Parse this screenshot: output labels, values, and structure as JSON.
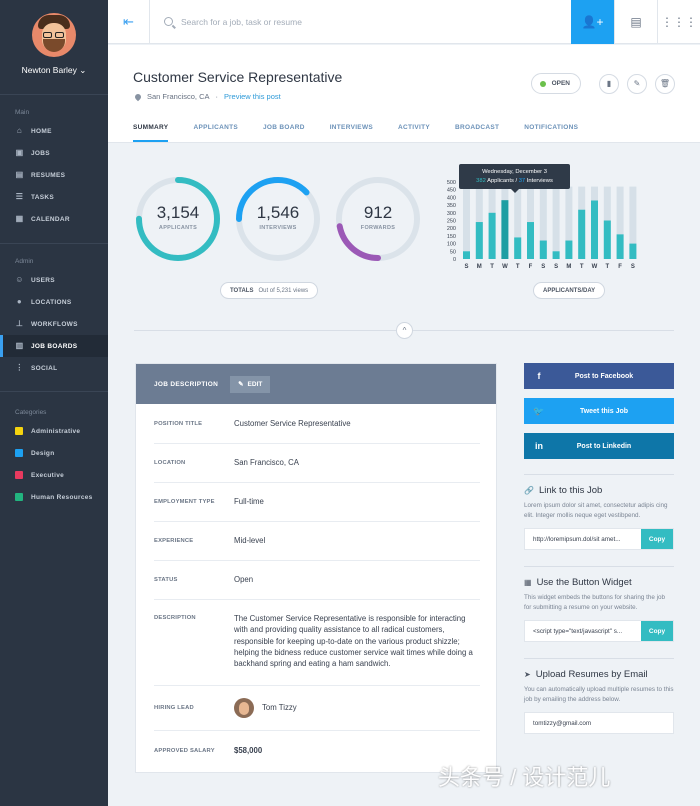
{
  "user": {
    "name": "Newton Barley ⌄"
  },
  "sidebar": {
    "main_label": "Main",
    "main_items": [
      {
        "label": "HOME",
        "icon": "home-icon"
      },
      {
        "label": "JOBS",
        "icon": "briefcase-icon"
      },
      {
        "label": "RESUMES",
        "icon": "document-icon"
      },
      {
        "label": "TASKS",
        "icon": "checklist-icon"
      },
      {
        "label": "CALENDAR",
        "icon": "calendar-icon"
      }
    ],
    "admin_label": "Admin",
    "admin_items": [
      {
        "label": "USERS",
        "icon": "users-icon"
      },
      {
        "label": "LOCATIONS",
        "icon": "pin-icon"
      },
      {
        "label": "WORKFLOWS",
        "icon": "hierarchy-icon"
      },
      {
        "label": "JOB BOARDS",
        "icon": "board-icon",
        "active": true
      },
      {
        "label": "SOCIAL",
        "icon": "share-icon"
      }
    ],
    "categories_label": "Categories",
    "categories": [
      {
        "label": "Administrative",
        "color": "#f5d40f"
      },
      {
        "label": "Design",
        "color": "#1da1f2"
      },
      {
        "label": "Executive",
        "color": "#e83a5f"
      },
      {
        "label": "Human Resources",
        "color": "#22b47f"
      }
    ]
  },
  "search": {
    "placeholder": "Search for a job, task or resume"
  },
  "job": {
    "title": "Customer Service Representative",
    "location": "San Francisco, CA",
    "preview_link": "Preview this post",
    "status": "OPEN"
  },
  "tabs": [
    "SUMMARY",
    "APPLICANTS",
    "JOB BOARD",
    "INTERVIEWS",
    "ACTIVITY",
    "BROADCAST",
    "NOTIFICATIONS"
  ],
  "stats": {
    "applicants": {
      "value": "3,154",
      "label": "APPLICANTS",
      "fill": 0.75,
      "color": "#33bcc2"
    },
    "interviews": {
      "value": "1,546",
      "label": "INTERVIEWS",
      "fill": 0.38,
      "color": "#1da1f2"
    },
    "forwards": {
      "value": "912",
      "label": "FORWARDS",
      "fill": 0.22,
      "color": "#9b59b6"
    },
    "totals_label": "TOTALS",
    "totals_sub": "Out of 5,231 views"
  },
  "chart_data": {
    "type": "bar",
    "categories": [
      "S",
      "M",
      "T",
      "W",
      "T",
      "F",
      "S",
      "S",
      "M",
      "T",
      "W",
      "T",
      "F",
      "S"
    ],
    "ylim": [
      0,
      500
    ],
    "yticks": [
      "0",
      "50",
      "100",
      "150",
      "200",
      "250",
      "300",
      "350",
      "400",
      "450",
      "500"
    ],
    "series": [
      {
        "values": [
          470,
          470,
          470,
          470,
          470,
          470,
          470,
          470,
          470,
          470,
          470,
          470,
          470,
          470
        ]
      },
      {
        "values": [
          50,
          240,
          300,
          382,
          140,
          240,
          120,
          50,
          120,
          320,
          380,
          250,
          160,
          100
        ]
      }
    ],
    "tooltip": {
      "date": "Wednesday, December 3",
      "applicants": "382",
      "applicants_label": "Applicants /",
      "interviews": "37",
      "interviews_label": "Interviews"
    },
    "label": "APPLICANTS/DAY"
  },
  "details": {
    "header": "JOB DESCRIPTION",
    "edit": "EDIT",
    "rows": [
      {
        "k": "POSITION TITLE",
        "v": "Customer Service Representative"
      },
      {
        "k": "LOCATION",
        "v": "San Francisco, CA"
      },
      {
        "k": "EMPLOYMENT TYPE",
        "v": "Full-time"
      },
      {
        "k": "EXPERIENCE",
        "v": "Mid-level"
      },
      {
        "k": "STATUS",
        "v": "Open"
      },
      {
        "k": "DESCRIPTION",
        "v": "The Customer Service Representative is responsible for interacting with and providing quality assistance to all radical customers, responsible for keeping up-to-date on the various product shizzle; helping the bidness reduce customer service wait times while doing a backhand spring and eating a ham sandwich."
      },
      {
        "k": "HIRING LEAD",
        "v": "Tom Tizzy"
      },
      {
        "k": "APPROVED SALARY",
        "v": "$58,000"
      }
    ]
  },
  "share": {
    "facebook": "Post to Facebook",
    "facebook_color": "#3b5998",
    "twitter": "Tweet this Job",
    "twitter_color": "#1da1f2",
    "linkedin": "Post to Linkedin",
    "linkedin_color": "#0e76a8"
  },
  "widgets": {
    "link_title": "Link to this Job",
    "link_desc": "Lorem ipsum dolor sit amet, consectetur adipis cing elit. Integer mollis neque eget vestibpend.",
    "link_value": "http://loremipsum.dol/sit amet...",
    "copy": "Copy",
    "button_title": "Use the Button Widget",
    "button_desc": "This widget embeds the buttons for sharing the job for submitting a resume on your website.",
    "button_value": "<script type=\"text/javascript\" s...",
    "upload_title": "Upload Resumes by Email",
    "upload_desc": "You can automatically upload multiple resumes to this job by emailing the address below.",
    "upload_value": "tomtizzy@gmail.com"
  },
  "watermark": "头条号 / 设计范儿"
}
